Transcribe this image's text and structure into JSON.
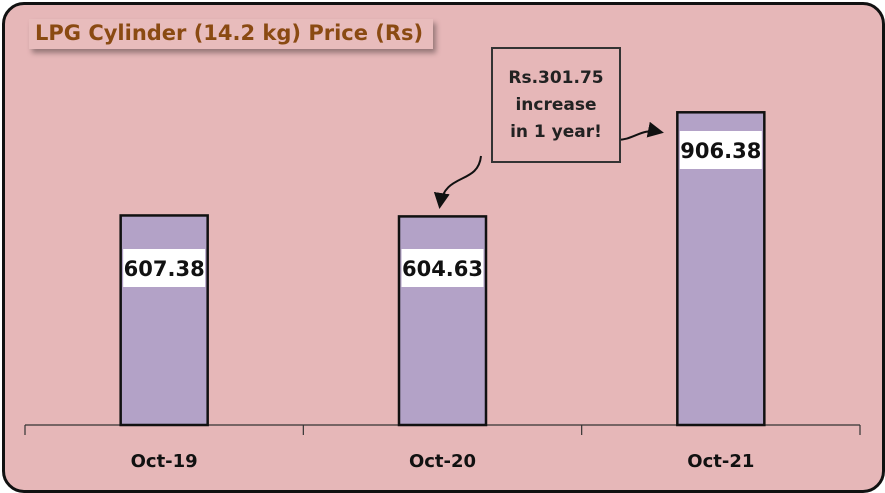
{
  "chart_data": {
    "type": "bar",
    "title": "LPG Cylinder (14.2 kg) Price (Rs)",
    "categories": [
      "Oct-19",
      "Oct-20",
      "Oct-21"
    ],
    "values": [
      607.38,
      604.63,
      906.38
    ],
    "data_labels": [
      "607.38",
      "604.63",
      "906.38"
    ],
    "annotation": [
      "Rs.301.75",
      "increase",
      "in 1 year!"
    ],
    "xlabel": "",
    "ylabel": "",
    "ylim": [
      0,
      1000
    ],
    "grid": false,
    "legend": "none",
    "colors": {
      "bar": "#b3a2c7",
      "background": "#e6b7b8",
      "title": "#8a4a12"
    }
  }
}
